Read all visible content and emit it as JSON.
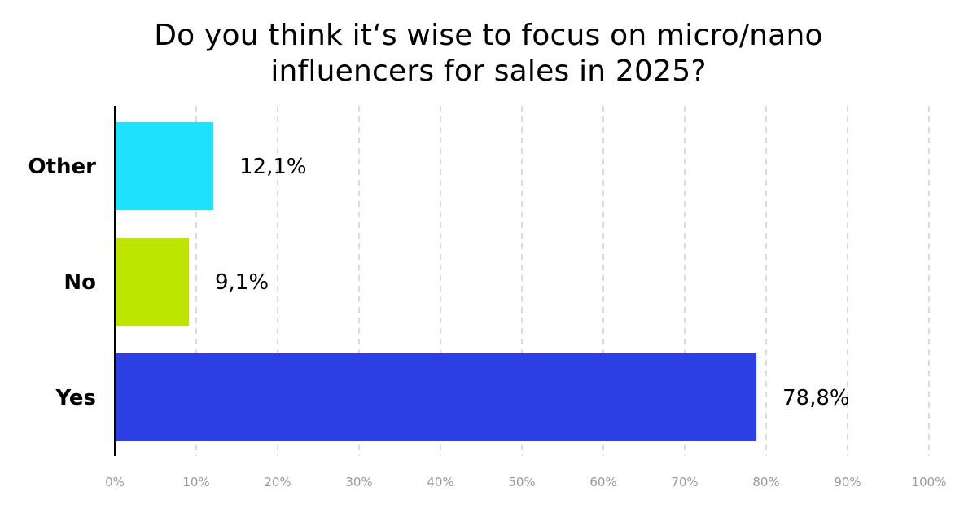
{
  "chart_data": {
    "type": "bar",
    "orientation": "horizontal",
    "title_lines": [
      "Do you think it‘s wise to focus on micro/nano",
      "influencers for sales in 2025?"
    ],
    "categories": [
      "Other",
      "No",
      "Yes"
    ],
    "values": [
      12.1,
      9.1,
      78.8
    ],
    "value_labels": [
      "12,1%",
      "9,1%",
      "78,8%"
    ],
    "colors": [
      "#1ee0ff",
      "#bde500",
      "#2b3fe3"
    ],
    "x_ticks": [
      "0%",
      "10%",
      "20%",
      "30%",
      "40%",
      "50%",
      "60%",
      "70%",
      "80%",
      "90%",
      "100%"
    ],
    "xlim": [
      0,
      100
    ],
    "grid": "vertical dashed",
    "xlabel": "",
    "ylabel": ""
  }
}
